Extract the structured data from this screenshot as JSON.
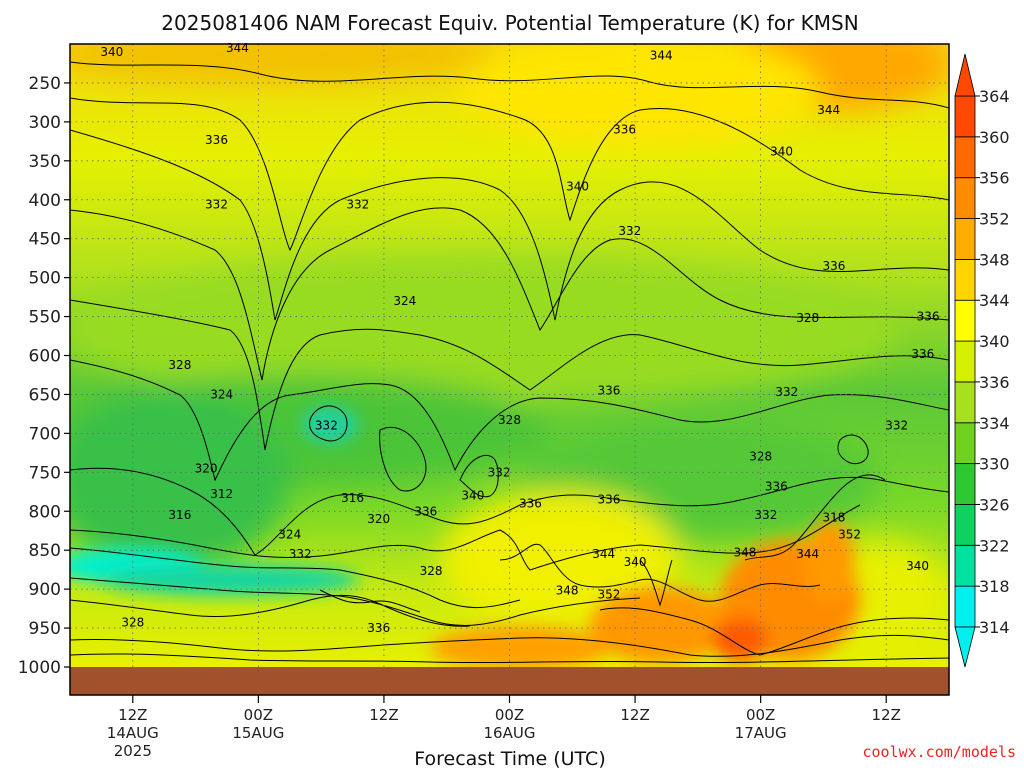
{
  "chart_data": {
    "type": "heatmap",
    "title": "2025081406 NAM Forecast Equiv. Potential Temperature (K) for KMSN",
    "xlabel": "Forecast Time (UTC)",
    "ylabel": "",
    "site_label": "coolwx.com/models",
    "y_axis": {
      "scale": "pressure",
      "inverted": true,
      "range": [
        1000,
        200
      ],
      "ticks": [
        "250",
        "300",
        "350",
        "400",
        "450",
        "500",
        "550",
        "600",
        "650",
        "700",
        "750",
        "800",
        "850",
        "900",
        "950",
        "1000"
      ],
      "tick_values": [
        250,
        300,
        350,
        400,
        450,
        500,
        550,
        600,
        650,
        700,
        750,
        800,
        850,
        900,
        950,
        1000
      ]
    },
    "x_axis": {
      "start_hour": 6,
      "end_hour": 90,
      "ticks": [
        {
          "hour": 12,
          "lines": [
            "12Z",
            "14AUG",
            "2025"
          ]
        },
        {
          "hour": 24,
          "lines": [
            "00Z",
            "15AUG"
          ]
        },
        {
          "hour": 36,
          "lines": [
            "12Z"
          ]
        },
        {
          "hour": 48,
          "lines": [
            "00Z",
            "16AUG"
          ]
        },
        {
          "hour": 60,
          "lines": [
            "12Z"
          ]
        },
        {
          "hour": 72,
          "lines": [
            "00Z",
            "17AUG"
          ]
        },
        {
          "hour": 84,
          "lines": [
            "12Z"
          ]
        }
      ]
    },
    "grid": true,
    "colorbar": {
      "labels": [
        "364",
        "360",
        "356",
        "352",
        "348",
        "344",
        "340",
        "336",
        "334",
        "330",
        "326",
        "322",
        "318",
        "314"
      ],
      "levels": [
        314,
        318,
        322,
        326,
        330,
        334,
        336,
        340,
        344,
        348,
        352,
        356,
        360,
        364
      ],
      "colors": [
        "#00f0f0",
        "#00e0a0",
        "#10d060",
        "#30c830",
        "#70d020",
        "#a8e020",
        "#d4f000",
        "#ffff00",
        "#ffd400",
        "#ffac00",
        "#ff8c00",
        "#ff6a00",
        "#ff4800"
      ]
    },
    "contour_labels": [
      {
        "text": "340",
        "hour": 10.0,
        "p": 210
      },
      {
        "text": "344",
        "hour": 22.0,
        "p": 205
      },
      {
        "text": "344",
        "hour": 62.5,
        "p": 215
      },
      {
        "text": "344",
        "hour": 78.5,
        "p": 285
      },
      {
        "text": "336",
        "hour": 59.0,
        "p": 310
      },
      {
        "text": "340",
        "hour": 74.0,
        "p": 338
      },
      {
        "text": "336",
        "hour": 20.0,
        "p": 323
      },
      {
        "text": "340",
        "hour": 54.5,
        "p": 383
      },
      {
        "text": "332",
        "hour": 20.0,
        "p": 406
      },
      {
        "text": "332",
        "hour": 33.5,
        "p": 406
      },
      {
        "text": "332",
        "hour": 59.5,
        "p": 440
      },
      {
        "text": "336",
        "hour": 79.0,
        "p": 485
      },
      {
        "text": "324",
        "hour": 38.0,
        "p": 530
      },
      {
        "text": "328",
        "hour": 76.5,
        "p": 552
      },
      {
        "text": "336",
        "hour": 88.0,
        "p": 550
      },
      {
        "text": "336",
        "hour": 87.5,
        "p": 598
      },
      {
        "text": "328",
        "hour": 16.5,
        "p": 612
      },
      {
        "text": "324",
        "hour": 20.5,
        "p": 650
      },
      {
        "text": "336",
        "hour": 57.5,
        "p": 645
      },
      {
        "text": "332",
        "hour": 74.5,
        "p": 647
      },
      {
        "text": "328",
        "hour": 48.0,
        "p": 683
      },
      {
        "text": "332",
        "hour": 30.5,
        "p": 690
      },
      {
        "text": "332",
        "hour": 85.0,
        "p": 690
      },
      {
        "text": "328",
        "hour": 72.0,
        "p": 730
      },
      {
        "text": "320",
        "hour": 19.0,
        "p": 745
      },
      {
        "text": "332",
        "hour": 47.0,
        "p": 750
      },
      {
        "text": "312",
        "hour": 20.5,
        "p": 778
      },
      {
        "text": "336",
        "hour": 73.5,
        "p": 768
      },
      {
        "text": "316",
        "hour": 33.0,
        "p": 783
      },
      {
        "text": "340",
        "hour": 44.5,
        "p": 780
      },
      {
        "text": "336",
        "hour": 50.0,
        "p": 790
      },
      {
        "text": "336",
        "hour": 57.5,
        "p": 785
      },
      {
        "text": "336",
        "hour": 40.0,
        "p": 800
      },
      {
        "text": "316",
        "hour": 16.5,
        "p": 805
      },
      {
        "text": "320",
        "hour": 35.5,
        "p": 810
      },
      {
        "text": "332",
        "hour": 72.5,
        "p": 805
      },
      {
        "text": "318",
        "hour": 79.0,
        "p": 808
      },
      {
        "text": "324",
        "hour": 27.0,
        "p": 830
      },
      {
        "text": "352",
        "hour": 80.5,
        "p": 830
      },
      {
        "text": "332",
        "hour": 28.0,
        "p": 855
      },
      {
        "text": "344",
        "hour": 57.0,
        "p": 855
      },
      {
        "text": "348",
        "hour": 70.5,
        "p": 853
      },
      {
        "text": "344",
        "hour": 76.5,
        "p": 855
      },
      {
        "text": "340",
        "hour": 60.0,
        "p": 865
      },
      {
        "text": "328",
        "hour": 40.5,
        "p": 877
      },
      {
        "text": "340",
        "hour": 87.0,
        "p": 870
      },
      {
        "text": "348",
        "hour": 53.5,
        "p": 902
      },
      {
        "text": "352",
        "hour": 57.5,
        "p": 907
      },
      {
        "text": "328",
        "hour": 12.0,
        "p": 943
      },
      {
        "text": "336",
        "hour": 35.5,
        "p": 950
      }
    ]
  }
}
